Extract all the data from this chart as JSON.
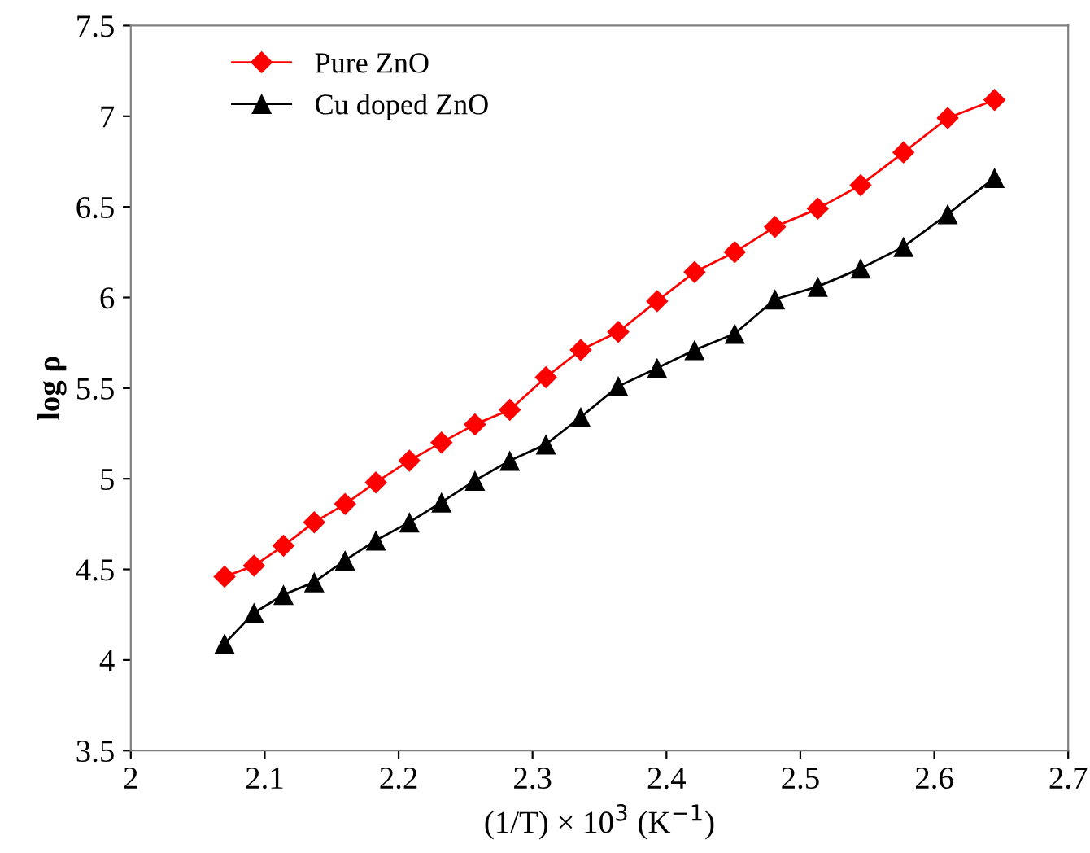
{
  "chart_data": {
    "type": "line",
    "xlabel": "(1/T) × 10$^{3}$ (K$^{−1}$)",
    "ylabel": "log ρ",
    "x": [
      2.07,
      2.092,
      2.114,
      2.137,
      2.16,
      2.183,
      2.208,
      2.232,
      2.257,
      2.283,
      2.31,
      2.336,
      2.364,
      2.393,
      2.421,
      2.451,
      2.481,
      2.513,
      2.545,
      2.577,
      2.61,
      2.645
    ],
    "series": [
      {
        "name": "Pure ZnO",
        "color": "#ff0000",
        "marker": "diamond",
        "values": [
          4.46,
          4.52,
          4.63,
          4.76,
          4.86,
          4.98,
          5.1,
          5.2,
          5.3,
          5.38,
          5.56,
          5.71,
          5.81,
          5.98,
          6.14,
          6.25,
          6.39,
          6.49,
          6.62,
          6.8,
          6.99,
          7.09
        ]
      },
      {
        "name": "Cu doped ZnO",
        "color": "#000000",
        "marker": "triangle",
        "values": [
          4.09,
          4.26,
          4.36,
          4.43,
          4.55,
          4.66,
          4.76,
          4.87,
          4.99,
          5.1,
          5.19,
          5.34,
          5.51,
          5.61,
          5.71,
          5.8,
          5.99,
          6.06,
          6.16,
          6.28,
          6.46,
          6.66
        ]
      }
    ],
    "xlim": [
      2,
      2.7
    ],
    "xticks": [
      2,
      2.1,
      2.2,
      2.3,
      2.4,
      2.5,
      2.6,
      2.7
    ],
    "ylim": [
      3.5,
      7.5
    ],
    "yticks": [
      3.5,
      4,
      4.5,
      5,
      5.5,
      6,
      6.5,
      7,
      7.5
    ],
    "grid": false,
    "legend": "top left",
    "line_style": "solid"
  }
}
